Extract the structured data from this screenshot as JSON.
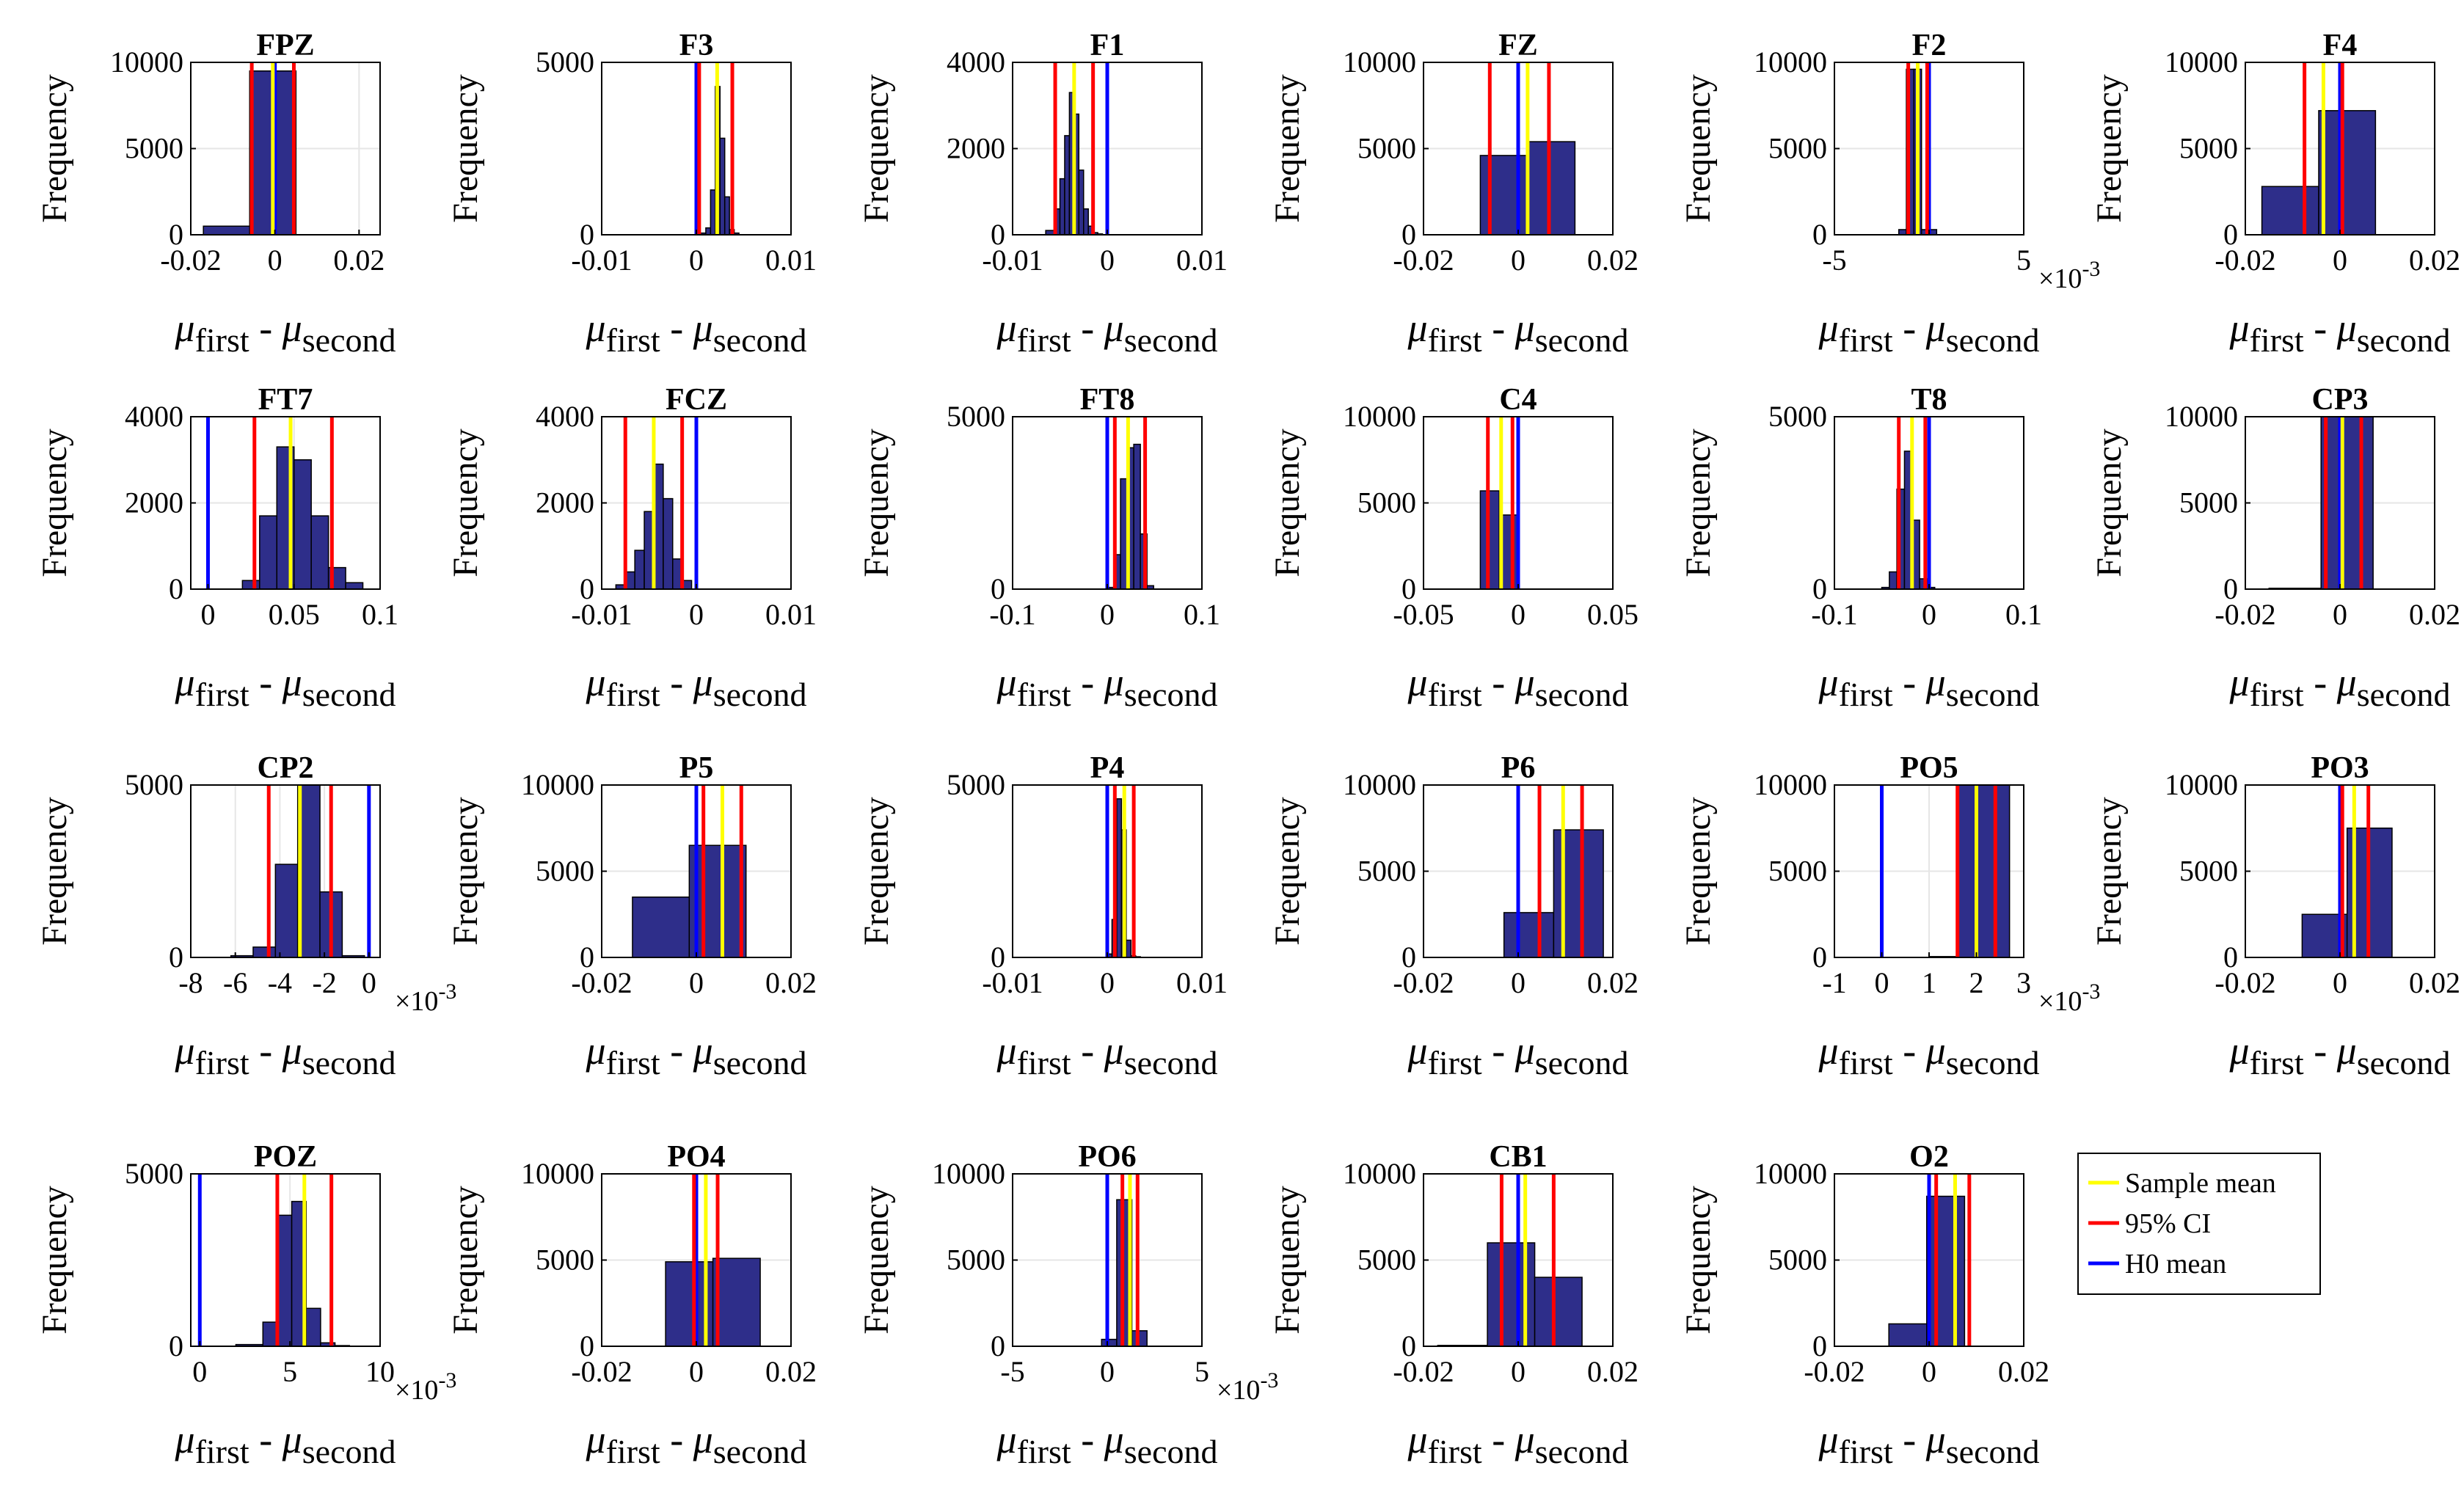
{
  "chart_data": {
    "type": "bar",
    "axis_ylabel": "Frequency",
    "xlabel_parts": {
      "mu": "μ",
      "sub1": "first",
      "dash": " - ",
      "sub2": "second"
    },
    "scale_base": "×10",
    "scale_exp": "-3",
    "colors": {
      "bar": "#2E2E8A",
      "sample_mean": "#FFFF00",
      "ci": "#FF0000",
      "h0": "#0000FF",
      "grid": "#E6E6E6"
    },
    "legend": [
      {
        "label": "Sample mean",
        "color": "#FFFF00"
      },
      {
        "label": "95% CI",
        "color": "#FF0000"
      },
      {
        "label": "H0 mean",
        "color": "#0000FF"
      }
    ],
    "panels": [
      {
        "title": "FPZ",
        "xlim": [
          -0.02,
          0.025
        ],
        "ylim": [
          0,
          10000
        ],
        "xticks": [
          -0.02,
          0,
          0.02
        ],
        "xtick_labels": [
          "-0.02",
          "0",
          "0.02"
        ],
        "yticks": [
          0,
          5000,
          10000
        ],
        "ytick_labels": [
          "0",
          "5000",
          "10000"
        ],
        "bins": [
          -0.017,
          -0.006,
          0.005
        ],
        "counts": [
          500,
          9500
        ],
        "mean": -0.0005,
        "ci": [
          -0.0055,
          0.0045
        ],
        "h0": 0,
        "scale": false
      },
      {
        "title": "F3",
        "xlim": [
          -0.01,
          0.01
        ],
        "ylim": [
          0,
          5000
        ],
        "xticks": [
          -0.01,
          0,
          0.01
        ],
        "xtick_labels": [
          "-0.01",
          "0",
          "0.01"
        ],
        "yticks": [
          0,
          5000
        ],
        "ytick_labels": [
          "0",
          "5000"
        ],
        "bins": [
          0,
          0.001,
          0.0015,
          0.002,
          0.0025,
          0.003,
          0.0035,
          0.004,
          0.0045
        ],
        "counts": [
          50,
          200,
          1300,
          4300,
          2800,
          1100,
          150,
          50
        ],
        "mean": 0.0022,
        "ci": [
          0.0003,
          0.0038
        ],
        "h0": 0,
        "scale": false
      },
      {
        "title": "F1",
        "xlim": [
          -0.01,
          0.01
        ],
        "ylim": [
          0,
          4000
        ],
        "xticks": [
          -0.01,
          0,
          0.01
        ],
        "xtick_labels": [
          "-0.01",
          "0",
          "0.01"
        ],
        "yticks": [
          0,
          2000,
          4000
        ],
        "ytick_labels": [
          "0",
          "2000",
          "4000"
        ],
        "bins": [
          -0.0065,
          -0.0055,
          -0.005,
          -0.0045,
          -0.004,
          -0.0035,
          -0.003,
          -0.0025,
          -0.002,
          -0.0015,
          -0.001,
          -0.0005
        ],
        "counts": [
          100,
          600,
          1300,
          2300,
          3300,
          2800,
          1500,
          600,
          200,
          50,
          20
        ],
        "mean": -0.0035,
        "ci": [
          -0.0055,
          -0.0015
        ],
        "h0": 0,
        "scale": false
      },
      {
        "title": "FZ",
        "xlim": [
          -0.02,
          0.02
        ],
        "ylim": [
          0,
          10000
        ],
        "xticks": [
          -0.02,
          0,
          0.02
        ],
        "xtick_labels": [
          "-0.02",
          "0",
          "0.02"
        ],
        "yticks": [
          0,
          5000,
          10000
        ],
        "ytick_labels": [
          "0",
          "5000",
          "10000"
        ],
        "bins": [
          -0.008,
          0.002,
          0.012
        ],
        "counts": [
          4600,
          5400
        ],
        "mean": 0.002,
        "ci": [
          -0.006,
          0.0065
        ],
        "h0": 0,
        "scale": false
      },
      {
        "title": "F2",
        "xlim": [
          -5,
          5
        ],
        "ylim": [
          0,
          10000
        ],
        "xticks": [
          -5,
          0,
          5
        ],
        "xtick_labels": [
          "-5",
          "",
          "5"
        ],
        "yticks": [
          0,
          5000,
          10000
        ],
        "ytick_labels": [
          "0",
          "5000",
          "10000"
        ],
        "bins": [
          -1.6,
          -1.2,
          -0.8,
          -0.4,
          0,
          0.4,
          0.8,
          1.2
        ],
        "counts": [
          300,
          9600,
          9600,
          300,
          300,
          0,
          0
        ],
        "mean": -0.6,
        "ci": [
          -1.1,
          -0.1
        ],
        "h0": 0,
        "scale": true
      },
      {
        "title": "F4",
        "xlim": [
          -0.02,
          0.02
        ],
        "ylim": [
          0,
          10000
        ],
        "xticks": [
          -0.02,
          0,
          0.02
        ],
        "xtick_labels": [
          "-0.02",
          "0",
          "0.02"
        ],
        "yticks": [
          0,
          5000,
          10000
        ],
        "ytick_labels": [
          "0",
          "5000",
          "10000"
        ],
        "bins": [
          -0.0165,
          -0.0045,
          0.0075
        ],
        "counts": [
          2800,
          7200
        ],
        "mean": -0.0035,
        "ci": [
          -0.0075,
          0.0005
        ],
        "h0": 0,
        "scale": false
      },
      {
        "title": "FT7",
        "xlim": [
          -0.01,
          0.1
        ],
        "ylim": [
          0,
          4000
        ],
        "xticks": [
          0,
          0.05,
          0.1
        ],
        "xtick_labels": [
          "0",
          "0.05",
          "0.1"
        ],
        "yticks": [
          0,
          2000,
          4000
        ],
        "ytick_labels": [
          "0",
          "2000",
          "4000"
        ],
        "bins": [
          0.02,
          0.03,
          0.04,
          0.05,
          0.06,
          0.07,
          0.08,
          0.09
        ],
        "counts": [
          200,
          1700,
          3300,
          3000,
          1700,
          500,
          150
        ],
        "mean": 0.048,
        "ci": [
          0.027,
          0.072
        ],
        "h0": 0,
        "scale": false
      },
      {
        "title": "FCZ",
        "xlim": [
          -0.01,
          0.01
        ],
        "ylim": [
          0,
          4000
        ],
        "xticks": [
          -0.01,
          0,
          0.01
        ],
        "xtick_labels": [
          "-0.01",
          "0",
          "0.01"
        ],
        "yticks": [
          0,
          2000,
          4000
        ],
        "ytick_labels": [
          "0",
          "2000",
          "4000"
        ],
        "bins": [
          -0.0085,
          -0.0075,
          -0.0065,
          -0.0055,
          -0.0045,
          -0.0035,
          -0.0025,
          -0.0015,
          -0.0005
        ],
        "counts": [
          100,
          400,
          900,
          1800,
          2900,
          2100,
          700,
          200
        ],
        "mean": -0.0045,
        "ci": [
          -0.0075,
          -0.0015
        ],
        "h0": 0,
        "scale": false
      },
      {
        "title": "FT8",
        "xlim": [
          -0.1,
          0.1
        ],
        "ylim": [
          0,
          5000
        ],
        "xticks": [
          -0.1,
          0,
          0.1
        ],
        "xtick_labels": [
          "-0.1",
          "0",
          "0.1"
        ],
        "yticks": [
          0,
          5000
        ],
        "ytick_labels": [
          "0",
          "5000"
        ],
        "bins": [
          0,
          0.007,
          0.014,
          0.021,
          0.028,
          0.035,
          0.042,
          0.049
        ],
        "counts": [
          50,
          1000,
          3200,
          4100,
          4200,
          1600,
          100
        ],
        "mean": 0.022,
        "ci": [
          0.008,
          0.04
        ],
        "h0": 0,
        "scale": false
      },
      {
        "title": "C4",
        "xlim": [
          -0.05,
          0.05
        ],
        "ylim": [
          0,
          10000
        ],
        "xticks": [
          -0.05,
          0,
          0.05
        ],
        "xtick_labels": [
          "-0.05",
          "0",
          "0.05"
        ],
        "yticks": [
          0,
          5000,
          10000
        ],
        "ytick_labels": [
          "0",
          "5000",
          "10000"
        ],
        "bins": [
          -0.02,
          -0.01,
          0
        ],
        "counts": [
          5700,
          4300
        ],
        "mean": -0.009,
        "ci": [
          -0.016,
          -0.003
        ],
        "h0": 0,
        "scale": false
      },
      {
        "title": "T8",
        "xlim": [
          -0.1,
          0.1
        ],
        "ylim": [
          0,
          5000
        ],
        "xticks": [
          -0.1,
          0,
          0.1
        ],
        "xtick_labels": [
          "-0.1",
          "0",
          "0.1"
        ],
        "yticks": [
          0,
          5000
        ],
        "ytick_labels": [
          "0",
          "5000"
        ],
        "bins": [
          -0.05,
          -0.042,
          -0.034,
          -0.026,
          -0.018,
          -0.01,
          -0.002,
          0.006
        ],
        "counts": [
          50,
          500,
          2900,
          4000,
          2000,
          300,
          50
        ],
        "mean": -0.018,
        "ci": [
          -0.032,
          -0.004
        ],
        "h0": 0,
        "scale": false
      },
      {
        "title": "CP3",
        "xlim": [
          -0.02,
          0.02
        ],
        "ylim": [
          0,
          10000
        ],
        "xticks": [
          -0.02,
          0,
          0.02
        ],
        "xtick_labels": [
          "-0.02",
          "0",
          "0.02"
        ],
        "yticks": [
          0,
          5000,
          10000
        ],
        "ytick_labels": [
          "0",
          "5000",
          "10000"
        ],
        "bins": [
          -0.015,
          -0.004,
          0.007
        ],
        "counts": [
          50,
          10000
        ],
        "mean": 0.0005,
        "ci": [
          -0.003,
          0.0045
        ],
        "h0": 0,
        "scale": false
      },
      {
        "title": "CP2",
        "xlim": [
          -8,
          0.5
        ],
        "ylim": [
          0,
          5000
        ],
        "xticks": [
          -8,
          -6,
          -4,
          -2,
          0
        ],
        "xtick_labels": [
          "-8",
          "-6",
          "-4",
          "-2",
          "0"
        ],
        "yticks": [
          0,
          5000
        ],
        "ytick_labels": [
          "0",
          "5000"
        ],
        "bins": [
          -6.2,
          -5.2,
          -4.2,
          -3.2,
          -2.2,
          -1.2,
          -0.2
        ],
        "counts": [
          50,
          300,
          2700,
          5000,
          1900,
          50
        ],
        "mean": -3.1,
        "ci": [
          -4.5,
          -1.7
        ],
        "h0": 0,
        "scale": true
      },
      {
        "title": "P5",
        "xlim": [
          -0.02,
          0.02
        ],
        "ylim": [
          0,
          10000
        ],
        "xticks": [
          -0.02,
          0,
          0.02
        ],
        "xtick_labels": [
          "-0.02",
          "0",
          "0.02"
        ],
        "yticks": [
          0,
          5000,
          10000
        ],
        "ytick_labels": [
          "0",
          "5000",
          "10000"
        ],
        "bins": [
          -0.0135,
          -0.0015,
          0.0105
        ],
        "counts": [
          3500,
          6500
        ],
        "mean": 0.0055,
        "ci": [
          0.0015,
          0.0095
        ],
        "h0": 0,
        "scale": false
      },
      {
        "title": "P4",
        "xlim": [
          -0.01,
          0.01
        ],
        "ylim": [
          0,
          5000
        ],
        "xticks": [
          -0.01,
          0,
          0.01
        ],
        "xtick_labels": [
          "-0.01",
          "0",
          "0.01"
        ],
        "yticks": [
          0,
          5000
        ],
        "ytick_labels": [
          "0",
          "5000"
        ],
        "bins": [
          0,
          0.0005,
          0.001,
          0.0015,
          0.002,
          0.0025,
          0.003,
          0.0035
        ],
        "counts": [
          100,
          1100,
          4600,
          3700,
          500,
          50,
          20
        ],
        "mean": 0.0018,
        "ci": [
          0.0008,
          0.0028
        ],
        "h0": 0,
        "scale": false
      },
      {
        "title": "P6",
        "xlim": [
          -0.02,
          0.02
        ],
        "ylim": [
          0,
          10000
        ],
        "xticks": [
          -0.02,
          0,
          0.02
        ],
        "xtick_labels": [
          "-0.02",
          "0",
          "0.02"
        ],
        "yticks": [
          0,
          5000,
          10000
        ],
        "ytick_labels": [
          "0",
          "5000",
          "10000"
        ],
        "bins": [
          -0.003,
          0.0075,
          0.018
        ],
        "counts": [
          2600,
          7400
        ],
        "mean": 0.0095,
        "ci": [
          0.0045,
          0.0135
        ],
        "h0": 0,
        "scale": false
      },
      {
        "title": "PO5",
        "xlim": [
          -1,
          3
        ],
        "ylim": [
          0,
          10000
        ],
        "xticks": [
          -1,
          0,
          1,
          2,
          3
        ],
        "xtick_labels": [
          "-1",
          "0",
          "1",
          "2",
          "3"
        ],
        "yticks": [
          0,
          5000,
          10000
        ],
        "ytick_labels": [
          "0",
          "5000",
          "10000"
        ],
        "bins": [
          1,
          1.6,
          2.7
        ],
        "counts": [
          50,
          10000
        ],
        "mean": 2.0,
        "ci": [
          1.6,
          2.4
        ],
        "h0": 0,
        "scale": true
      },
      {
        "title": "PO3",
        "xlim": [
          -0.02,
          0.02
        ],
        "ylim": [
          0,
          10000
        ],
        "xticks": [
          -0.02,
          0,
          0.02
        ],
        "xtick_labels": [
          "-0.02",
          "0",
          "0.02"
        ],
        "yticks": [
          0,
          5000,
          10000
        ],
        "ytick_labels": [
          "0",
          "5000",
          "10000"
        ],
        "bins": [
          -0.008,
          0.0015,
          0.011
        ],
        "counts": [
          2500,
          7500
        ],
        "mean": 0.003,
        "ci": [
          0.0005,
          0.006
        ],
        "h0": 0,
        "scale": false
      },
      {
        "title": "POZ",
        "xlim": [
          -0.5,
          10
        ],
        "ylim": [
          0,
          5000
        ],
        "xticks": [
          0,
          5,
          10
        ],
        "xtick_labels": [
          "0",
          "5",
          "10"
        ],
        "yticks": [
          0,
          5000
        ],
        "ytick_labels": [
          "0",
          "5000"
        ],
        "bins": [
          2,
          3.5,
          4.3,
          5.1,
          5.9,
          6.7,
          7.5,
          8.3
        ],
        "counts": [
          50,
          700,
          3800,
          4200,
          1100,
          100,
          20
        ],
        "mean": 5.8,
        "ci": [
          4.3,
          7.3
        ],
        "h0": 0,
        "scale": true
      },
      {
        "title": "PO4",
        "xlim": [
          -0.02,
          0.02
        ],
        "ylim": [
          0,
          10000
        ],
        "xticks": [
          -0.02,
          0,
          0.02
        ],
        "xtick_labels": [
          "-0.02",
          "0",
          "0.02"
        ],
        "yticks": [
          0,
          5000,
          10000
        ],
        "ytick_labels": [
          "0",
          "5000",
          "10000"
        ],
        "bins": [
          -0.0065,
          0.0035,
          0.0135
        ],
        "counts": [
          4900,
          5100
        ],
        "mean": 0.002,
        "ci": [
          -0.0005,
          0.0045
        ],
        "h0": 0,
        "scale": false
      },
      {
        "title": "PO6",
        "xlim": [
          -5,
          5
        ],
        "ylim": [
          0,
          10000
        ],
        "xticks": [
          -5,
          0,
          5
        ],
        "xtick_labels": [
          "-5",
          "0",
          "5"
        ],
        "yticks": [
          0,
          5000,
          10000
        ],
        "ytick_labels": [
          "0",
          "5000",
          "10000"
        ],
        "bins": [
          -0.3,
          0.5,
          1.3,
          2.1,
          2.9
        ],
        "counts": [
          400,
          8500,
          900,
          0
        ],
        "mean": 1.2,
        "ci": [
          0.8,
          1.6
        ],
        "h0": 0,
        "scale": true
      },
      {
        "title": "CB1",
        "xlim": [
          -0.02,
          0.02
        ],
        "ylim": [
          0,
          10000
        ],
        "xticks": [
          -0.02,
          0,
          0.02
        ],
        "xtick_labels": [
          "-0.02",
          "0",
          "0.02"
        ],
        "yticks": [
          0,
          5000,
          10000
        ],
        "ytick_labels": [
          "0",
          "5000",
          "10000"
        ],
        "bins": [
          -0.017,
          -0.0065,
          0.0035,
          0.0135
        ],
        "counts": [
          50,
          6000,
          4000
        ],
        "mean": 0.0015,
        "ci": [
          -0.0035,
          0.0075
        ],
        "h0": 0,
        "scale": false
      },
      {
        "title": "O2",
        "xlim": [
          -0.02,
          0.02
        ],
        "ylim": [
          0,
          10000
        ],
        "xticks": [
          -0.02,
          0,
          0.02
        ],
        "xtick_labels": [
          "-0.02",
          "0",
          "0.02"
        ],
        "yticks": [
          0,
          5000,
          10000
        ],
        "ytick_labels": [
          "0",
          "5000",
          "10000"
        ],
        "bins": [
          -0.0085,
          -0.0005,
          0.0075,
          0.0135
        ],
        "counts": [
          1300,
          8700,
          0
        ],
        "mean": 0.0055,
        "ci": [
          0.0015,
          0.0085
        ],
        "h0": 0,
        "scale": false
      }
    ]
  }
}
